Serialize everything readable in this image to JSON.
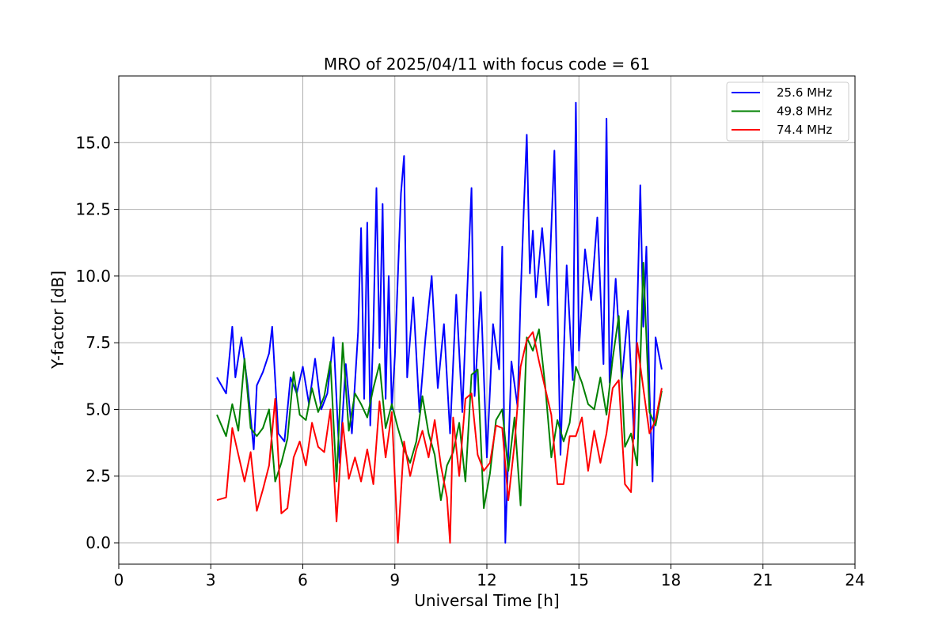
{
  "chart_data": {
    "type": "line",
    "title": "MRO of 2025/04/11 with focus code = 61",
    "xlabel": "Universal Time [h]",
    "ylabel": "Y-factor [dB]",
    "xlim": [
      0,
      24
    ],
    "ylim": [
      -0.8,
      17.5
    ],
    "xticks": [
      "0",
      "3",
      "6",
      "9",
      "12",
      "15",
      "18",
      "21",
      "24"
    ],
    "yticks": [
      "0.0",
      "2.5",
      "5.0",
      "7.5",
      "10.0",
      "12.5",
      "15.0"
    ],
    "grid": true,
    "legend_position": "top-right",
    "series": [
      {
        "name": "25.6 MHz",
        "color": "#0000ff",
        "x": [
          3.2,
          3.5,
          3.7,
          3.8,
          4.0,
          4.2,
          4.4,
          4.5,
          4.7,
          4.9,
          5.0,
          5.2,
          5.4,
          5.6,
          5.8,
          6.0,
          6.2,
          6.4,
          6.6,
          6.8,
          7.0,
          7.2,
          7.4,
          7.6,
          7.8,
          7.9,
          8.0,
          8.1,
          8.2,
          8.3,
          8.4,
          8.5,
          8.6,
          8.7,
          8.8,
          8.9,
          9.0,
          9.2,
          9.3,
          9.4,
          9.6,
          9.8,
          10.0,
          10.2,
          10.4,
          10.6,
          10.8,
          11.0,
          11.2,
          11.4,
          11.5,
          11.6,
          11.8,
          12.0,
          12.2,
          12.4,
          12.5,
          12.6,
          12.8,
          13.0,
          13.1,
          13.2,
          13.3,
          13.4,
          13.5,
          13.6,
          13.8,
          14.0,
          14.2,
          14.4,
          14.6,
          14.8,
          14.9,
          15.0,
          15.2,
          15.4,
          15.6,
          15.8,
          15.9,
          16.0,
          16.2,
          16.4,
          16.6,
          16.8,
          17.0,
          17.1,
          17.2,
          17.3,
          17.4,
          17.5,
          17.7
        ],
        "values": [
          6.2,
          5.6,
          8.1,
          6.2,
          7.7,
          5.9,
          3.5,
          5.9,
          6.4,
          7.1,
          8.1,
          4.1,
          3.8,
          6.2,
          5.6,
          6.6,
          5.2,
          6.9,
          5.0,
          5.6,
          7.7,
          3.0,
          6.7,
          4.1,
          7.9,
          11.8,
          5.4,
          12.0,
          4.4,
          8.0,
          13.3,
          7.3,
          12.7,
          5.4,
          10.0,
          5.0,
          7.0,
          13.1,
          14.5,
          6.2,
          9.2,
          4.9,
          7.7,
          10.0,
          5.8,
          8.2,
          4.1,
          9.3,
          4.9,
          10.6,
          13.3,
          5.5,
          9.4,
          3.2,
          8.2,
          6.5,
          11.1,
          0.0,
          6.8,
          5.1,
          9.2,
          12.4,
          15.3,
          10.1,
          11.7,
          9.2,
          11.8,
          8.9,
          14.7,
          3.3,
          10.4,
          6.1,
          16.5,
          7.2,
          11.0,
          9.1,
          12.2,
          6.7,
          15.9,
          6.0,
          9.9,
          6.1,
          8.7,
          3.9,
          13.4,
          8.1,
          11.1,
          5.7,
          2.3,
          7.7,
          6.5
        ]
      },
      {
        "name": "49.8 MHz",
        "color": "#008000",
        "x": [
          3.2,
          3.5,
          3.7,
          3.9,
          4.1,
          4.3,
          4.5,
          4.7,
          4.9,
          5.1,
          5.3,
          5.5,
          5.7,
          5.9,
          6.1,
          6.3,
          6.5,
          6.7,
          6.9,
          7.1,
          7.3,
          7.5,
          7.7,
          7.9,
          8.1,
          8.3,
          8.5,
          8.7,
          8.9,
          9.1,
          9.3,
          9.5,
          9.7,
          9.9,
          10.1,
          10.3,
          10.5,
          10.7,
          10.9,
          11.1,
          11.3,
          11.5,
          11.7,
          11.9,
          12.1,
          12.3,
          12.5,
          12.7,
          12.9,
          13.1,
          13.3,
          13.5,
          13.7,
          13.9,
          14.1,
          14.3,
          14.5,
          14.7,
          14.9,
          15.1,
          15.3,
          15.5,
          15.7,
          15.9,
          16.1,
          16.3,
          16.5,
          16.7,
          16.9,
          17.1,
          17.3,
          17.5,
          17.7
        ],
        "values": [
          4.8,
          4.0,
          5.2,
          4.2,
          6.9,
          4.3,
          4.0,
          4.3,
          5.0,
          2.3,
          3.0,
          3.9,
          6.4,
          4.8,
          4.6,
          5.8,
          4.9,
          5.5,
          6.8,
          2.3,
          7.5,
          4.2,
          5.6,
          5.2,
          4.7,
          5.8,
          6.7,
          4.3,
          5.2,
          4.3,
          3.5,
          3.0,
          3.8,
          5.5,
          4.1,
          3.3,
          1.6,
          2.9,
          3.4,
          4.5,
          2.3,
          6.3,
          6.5,
          1.3,
          2.6,
          4.6,
          5.0,
          2.7,
          4.7,
          1.4,
          7.7,
          7.2,
          8.0,
          5.9,
          3.2,
          4.6,
          3.8,
          4.5,
          6.6,
          6.0,
          5.2,
          5.0,
          6.2,
          4.8,
          6.9,
          8.5,
          3.6,
          4.1,
          2.9,
          10.5,
          4.9,
          4.4,
          5.7
        ]
      },
      {
        "name": "74.4 MHz",
        "color": "#ff0000",
        "x": [
          3.2,
          3.5,
          3.7,
          3.9,
          4.1,
          4.3,
          4.5,
          4.7,
          4.9,
          5.1,
          5.3,
          5.5,
          5.7,
          5.9,
          6.1,
          6.3,
          6.5,
          6.7,
          6.9,
          7.1,
          7.3,
          7.5,
          7.7,
          7.9,
          8.1,
          8.3,
          8.5,
          8.7,
          8.9,
          9.1,
          9.3,
          9.5,
          9.7,
          9.9,
          10.1,
          10.3,
          10.5,
          10.7,
          10.8,
          10.9,
          11.1,
          11.3,
          11.5,
          11.7,
          11.9,
          12.1,
          12.3,
          12.5,
          12.7,
          12.9,
          13.1,
          13.3,
          13.5,
          13.7,
          13.9,
          14.1,
          14.3,
          14.5,
          14.7,
          14.9,
          15.1,
          15.3,
          15.5,
          15.7,
          15.9,
          16.1,
          16.3,
          16.5,
          16.7,
          16.9,
          17.1,
          17.3,
          17.5,
          17.7
        ],
        "values": [
          1.6,
          1.7,
          4.3,
          3.3,
          2.3,
          3.4,
          1.2,
          2.0,
          2.9,
          5.4,
          1.1,
          1.3,
          3.2,
          3.8,
          2.9,
          4.5,
          3.6,
          3.4,
          5.0,
          0.8,
          4.5,
          2.4,
          3.2,
          2.3,
          3.5,
          2.2,
          5.3,
          3.2,
          4.9,
          0.0,
          3.8,
          2.5,
          3.5,
          4.2,
          3.2,
          4.6,
          2.9,
          1.7,
          0.0,
          4.7,
          2.5,
          5.4,
          5.6,
          3.3,
          2.7,
          3.0,
          4.4,
          4.3,
          1.6,
          3.7,
          6.6,
          7.6,
          7.9,
          6.8,
          5.8,
          4.8,
          2.2,
          2.2,
          4.0,
          4.0,
          4.7,
          2.7,
          4.2,
          3.0,
          4.1,
          5.8,
          6.1,
          2.2,
          1.9,
          7.5,
          5.8,
          4.1,
          4.6,
          5.8
        ]
      }
    ]
  }
}
